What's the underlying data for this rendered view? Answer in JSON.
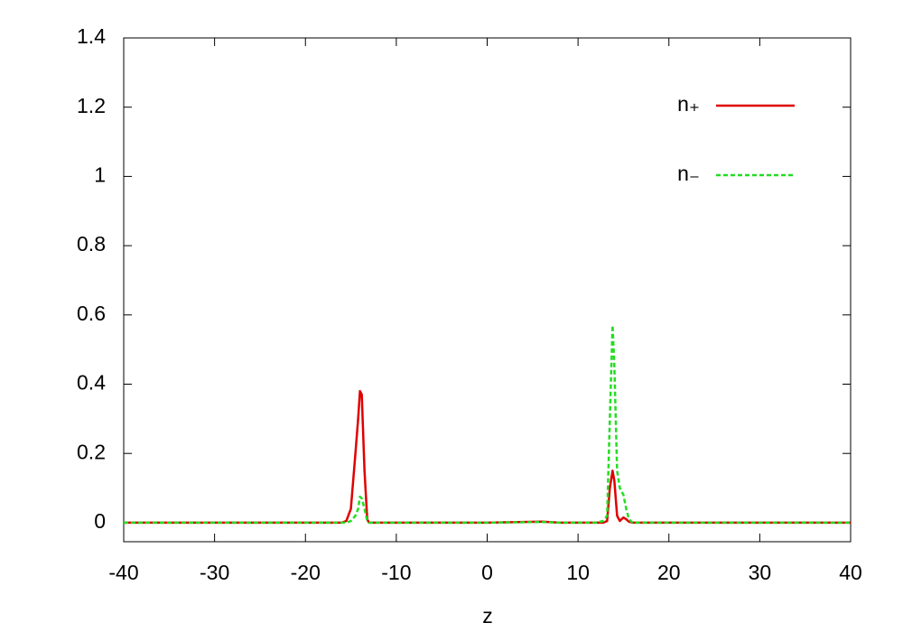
{
  "chart_data": {
    "type": "line",
    "xlabel": "z",
    "x": [
      -40,
      -20,
      -16,
      -15.5,
      -15,
      -14.5,
      -14.2,
      -14,
      -13.8,
      -13.5,
      -13.2,
      -13,
      -12,
      0,
      6,
      8,
      12,
      12.8,
      13.2,
      13.5,
      13.8,
      14,
      14.3,
      14.6,
      15,
      15.3,
      15.6,
      16,
      20,
      40
    ],
    "series": [
      {
        "name": "n₊",
        "color": "#e00000",
        "dash": false,
        "values": [
          0,
          0,
          0,
          0.005,
          0.04,
          0.2,
          0.3,
          0.38,
          0.37,
          0.15,
          0.01,
          0,
          0,
          0,
          0.003,
          0,
          0,
          0,
          0.005,
          0.1,
          0.15,
          0.12,
          0.02,
          0.005,
          0.015,
          0.01,
          0.003,
          0,
          0,
          0
        ]
      },
      {
        "name": "n₋",
        "color": "#22dd22",
        "dash": true,
        "values": [
          0,
          0,
          0,
          0,
          0.005,
          0.02,
          0.04,
          0.075,
          0.07,
          0.04,
          0.005,
          0,
          0,
          0,
          0.002,
          0,
          0,
          0.005,
          0.02,
          0.3,
          0.57,
          0.45,
          0.15,
          0.1,
          0.08,
          0.04,
          0.01,
          0,
          0,
          0
        ]
      }
    ],
    "xlim": [
      -40,
      40
    ],
    "xticks": [
      -40,
      -30,
      -20,
      -10,
      0,
      10,
      20,
      30,
      40
    ],
    "ylim": [
      -0.055,
      1.4
    ],
    "yticks": [
      0,
      0.2,
      0.4,
      0.6,
      0.8,
      1,
      1.2,
      1.4
    ],
    "legend": "top-right",
    "grid": false
  }
}
